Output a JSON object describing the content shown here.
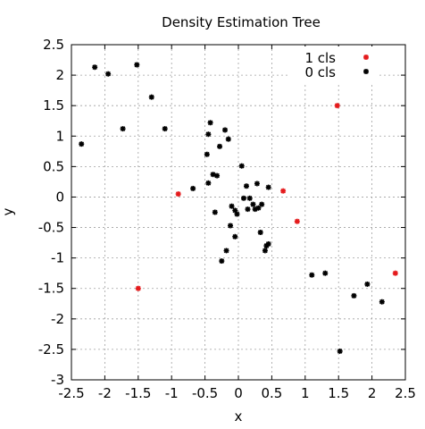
{
  "chart_data": {
    "type": "scatter",
    "title": "Density Estimation Tree",
    "xlabel": "x",
    "ylabel": "y",
    "xlim": [
      -2.5,
      2.5
    ],
    "ylim": [
      -3,
      2.5
    ],
    "xticks": [
      "-2.5",
      "-2",
      "-1.5",
      "-1",
      "-0.5",
      "0",
      "0.5",
      "1",
      "1.5",
      "2",
      "2.5"
    ],
    "yticks": [
      "-3",
      "-2.5",
      "-2",
      "-1.5",
      "-1",
      "-0.5",
      "0",
      "0.5",
      "1",
      "1.5",
      "2",
      "2.5"
    ],
    "grid": true,
    "legend_position": "top-right",
    "series": [
      {
        "name": "1 cls",
        "color": "#e41a1c",
        "points": [
          [
            1.48,
            1.5
          ],
          [
            -0.9,
            0.05
          ],
          [
            0.67,
            0.1
          ],
          [
            0.88,
            -0.4
          ],
          [
            -1.5,
            -1.5
          ],
          [
            2.35,
            -1.25
          ]
        ]
      },
      {
        "name": "0 cls",
        "color": "#000000",
        "points": [
          [
            -2.15,
            2.13
          ],
          [
            -1.95,
            2.02
          ],
          [
            -1.52,
            2.17
          ],
          [
            -1.3,
            1.64
          ],
          [
            -1.73,
            1.12
          ],
          [
            -1.1,
            1.12
          ],
          [
            -2.35,
            0.87
          ],
          [
            -0.42,
            1.22
          ],
          [
            -0.45,
            1.03
          ],
          [
            -0.2,
            1.1
          ],
          [
            -0.15,
            0.95
          ],
          [
            -0.47,
            0.7
          ],
          [
            -0.28,
            0.83
          ],
          [
            0.05,
            0.51
          ],
          [
            -0.38,
            0.37
          ],
          [
            -0.32,
            0.35
          ],
          [
            -0.45,
            0.23
          ],
          [
            -0.68,
            0.14
          ],
          [
            0.12,
            0.18
          ],
          [
            0.28,
            0.22
          ],
          [
            0.45,
            0.16
          ],
          [
            0.08,
            -0.02
          ],
          [
            0.17,
            -0.02
          ],
          [
            0.22,
            -0.12
          ],
          [
            0.35,
            -0.12
          ],
          [
            -0.1,
            -0.15
          ],
          [
            -0.05,
            -0.22
          ],
          [
            0.14,
            -0.2
          ],
          [
            0.3,
            -0.18
          ],
          [
            -0.02,
            -0.28
          ],
          [
            -0.35,
            -0.25
          ],
          [
            0.25,
            -0.2
          ],
          [
            -0.12,
            -0.47
          ],
          [
            -0.05,
            -0.65
          ],
          [
            0.33,
            -0.58
          ],
          [
            0.45,
            -0.77
          ],
          [
            0.42,
            -0.8
          ],
          [
            0.4,
            -0.88
          ],
          [
            -0.18,
            -0.88
          ],
          [
            -0.25,
            -1.05
          ],
          [
            1.1,
            -1.28
          ],
          [
            1.3,
            -1.25
          ],
          [
            1.73,
            -1.62
          ],
          [
            1.93,
            -1.43
          ],
          [
            2.15,
            -1.72
          ],
          [
            1.52,
            -2.53
          ]
        ]
      }
    ]
  }
}
